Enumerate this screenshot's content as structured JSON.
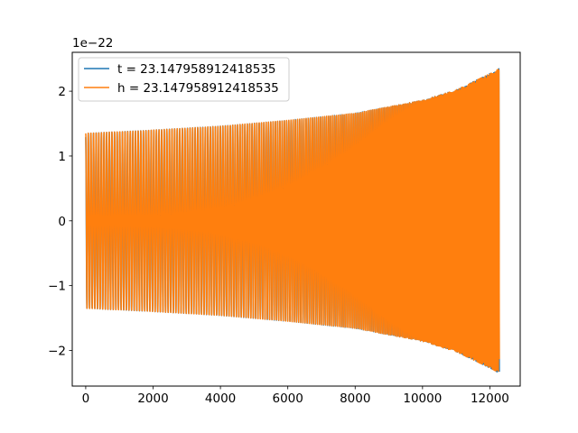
{
  "chart_data": {
    "type": "line",
    "title": "",
    "xlabel": "",
    "ylabel": "",
    "y_offset_label": "1e−22",
    "xlim": [
      -400,
      12900
    ],
    "ylim": [
      -2.55,
      2.6
    ],
    "x_ticks": [
      0,
      2000,
      4000,
      6000,
      8000,
      10000,
      12000
    ],
    "x_tick_labels": [
      "0",
      "2000",
      "4000",
      "6000",
      "8000",
      "10000",
      "12000"
    ],
    "y_ticks": [
      -2,
      -1,
      0,
      1,
      2
    ],
    "y_tick_labels": [
      "−2",
      "−1",
      "0",
      "1",
      "2"
    ],
    "grid": false,
    "legend_position": "upper-left",
    "series": [
      {
        "name": "t = 23.147958912418535",
        "color": "#1f77b4",
        "description": "chirp oscillation, amplitude grows from ~1.35 to ~2.35 (x1e-22) over x = 0..12280",
        "x_range": [
          0,
          12280
        ],
        "amplitude_samples": {
          "x": [
            0,
            2000,
            4000,
            6000,
            8000,
            10000,
            11000,
            12000,
            12280
          ],
          "amp": [
            1.35,
            1.4,
            1.46,
            1.55,
            1.66,
            1.86,
            2.02,
            2.27,
            2.35
          ]
        }
      },
      {
        "name": "h = 23.147958912418535",
        "color": "#ff7f0e",
        "description": "chirp oscillation overlapping series t, amplitude grows from ~1.35 to ~2.35 (x1e-22)",
        "x_range": [
          0,
          12280
        ],
        "amplitude_samples": {
          "x": [
            0,
            2000,
            4000,
            6000,
            8000,
            10000,
            11000,
            12000,
            12280
          ],
          "amp": [
            1.35,
            1.4,
            1.46,
            1.55,
            1.66,
            1.86,
            2.02,
            2.27,
            2.35
          ]
        }
      }
    ]
  }
}
